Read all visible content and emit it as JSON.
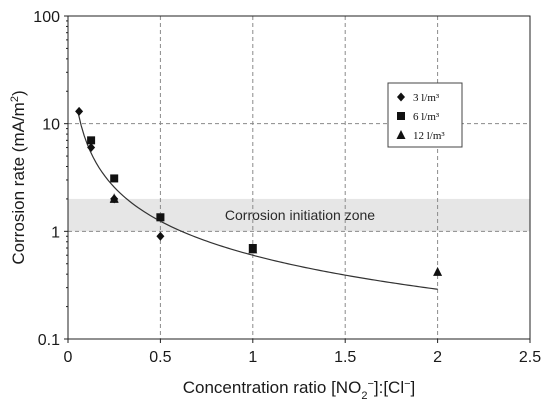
{
  "chart_data": {
    "type": "scatter",
    "xlabel": "Concentration ratio [NO2−]:[Cl−]",
    "xlabel_parts": [
      "Concentration ratio [NO",
      "2",
      "−",
      "]:[Cl",
      "−",
      "]"
    ],
    "ylabel": "Corrosion rate (mA/m²)",
    "ylabel_parts": [
      "Corrosion rate (mA/m",
      "2",
      ")"
    ],
    "xlim": [
      0,
      2.5
    ],
    "ylim": [
      0.1,
      100
    ],
    "yscale": "log",
    "x_ticks": [
      "0",
      "0.5",
      "1",
      "1.5",
      "2",
      "2.5"
    ],
    "x_tick_values": [
      0,
      0.5,
      1,
      1.5,
      2,
      2.5
    ],
    "y_ticks": [
      "0.1",
      "1",
      "10",
      "100"
    ],
    "y_tick_values": [
      0.1,
      1,
      10,
      100
    ],
    "grid": true,
    "legend_position": "top-right",
    "series": [
      {
        "name": "3 l/m³",
        "marker": "diamond",
        "color": "#111111",
        "x": [
          0.06,
          0.125,
          0.25,
          0.5
        ],
        "y": [
          13,
          6,
          2,
          0.9
        ]
      },
      {
        "name": "6 l/m³",
        "marker": "square",
        "color": "#111111",
        "x": [
          0.125,
          0.25,
          0.5,
          1.0
        ],
        "y": [
          7,
          3.1,
          1.35,
          0.7
        ]
      },
      {
        "name": "12 l/m³",
        "marker": "triangle",
        "color": "#111111",
        "x": [
          0.25,
          1.0,
          2.0
        ],
        "y": [
          2.0,
          0.68,
          0.42
        ]
      }
    ],
    "gray_points": [
      {
        "marker": "diamond",
        "x": 0.25,
        "y": 2.0
      },
      {
        "marker": "square",
        "x": 0.5,
        "y": 1.35
      },
      {
        "marker": "triangle",
        "x": 0.25,
        "y": 2.05
      }
    ],
    "fit_curve": {
      "type": "power",
      "coefficient": 0.6,
      "exponent": -1.05,
      "x_range": [
        0.055,
        2.0
      ]
    },
    "band": {
      "label": "Corrosion initiation zone",
      "y_range": [
        1,
        2
      ],
      "color": "#e6e6e6"
    }
  }
}
